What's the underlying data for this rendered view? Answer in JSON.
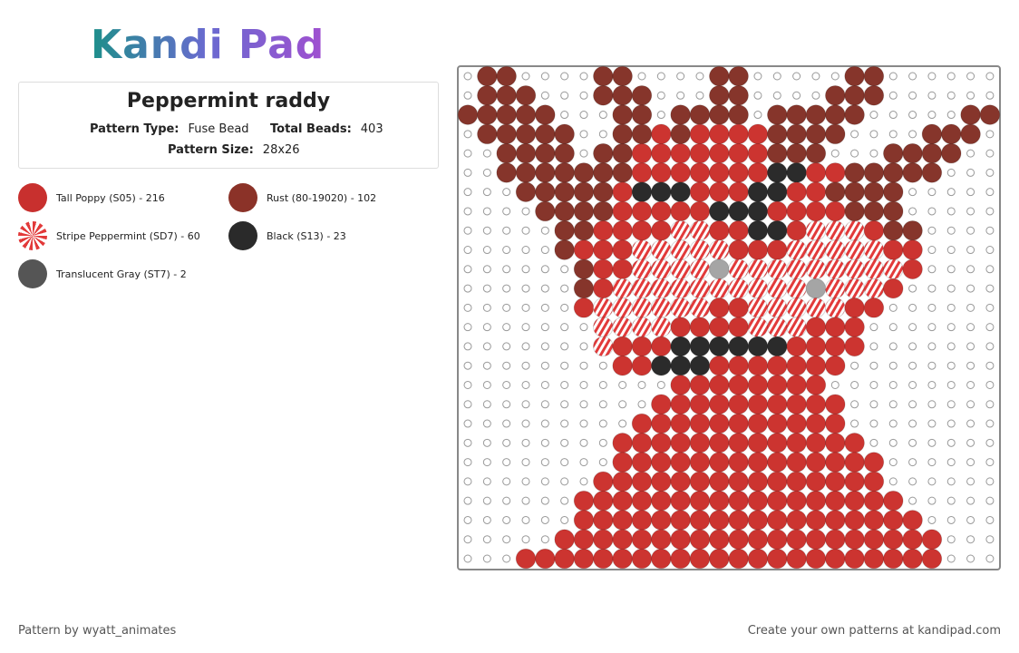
{
  "header": {
    "logo": "Kandi Pad"
  },
  "pattern": {
    "title": "Peppermint raddy",
    "fields": [
      {
        "label": "Pattern Type:",
        "value": "Fuse Bead"
      },
      {
        "label": "Total Beads:",
        "value": "403"
      },
      {
        "label": "Pattern Size:",
        "value": "28x26"
      }
    ]
  },
  "colors": [
    {
      "name": "Tall Poppy (S05) - 216",
      "swatch": "#c8302e"
    },
    {
      "name": "Rust (80-19020) - 102",
      "swatch": "#8b3228"
    },
    {
      "name": "Stripe Peppermint (SD7) - 60",
      "swatch": "peppermint"
    },
    {
      "name": "Black (S13) - 23",
      "swatch": "#2a2a2a"
    },
    {
      "name": "Translucent Gray (ST7) - 2",
      "swatch": "#555555"
    }
  ],
  "footer": {
    "author": "Pattern by wyatt_animates",
    "cta": "Create your own patterns at kandipad.com"
  }
}
